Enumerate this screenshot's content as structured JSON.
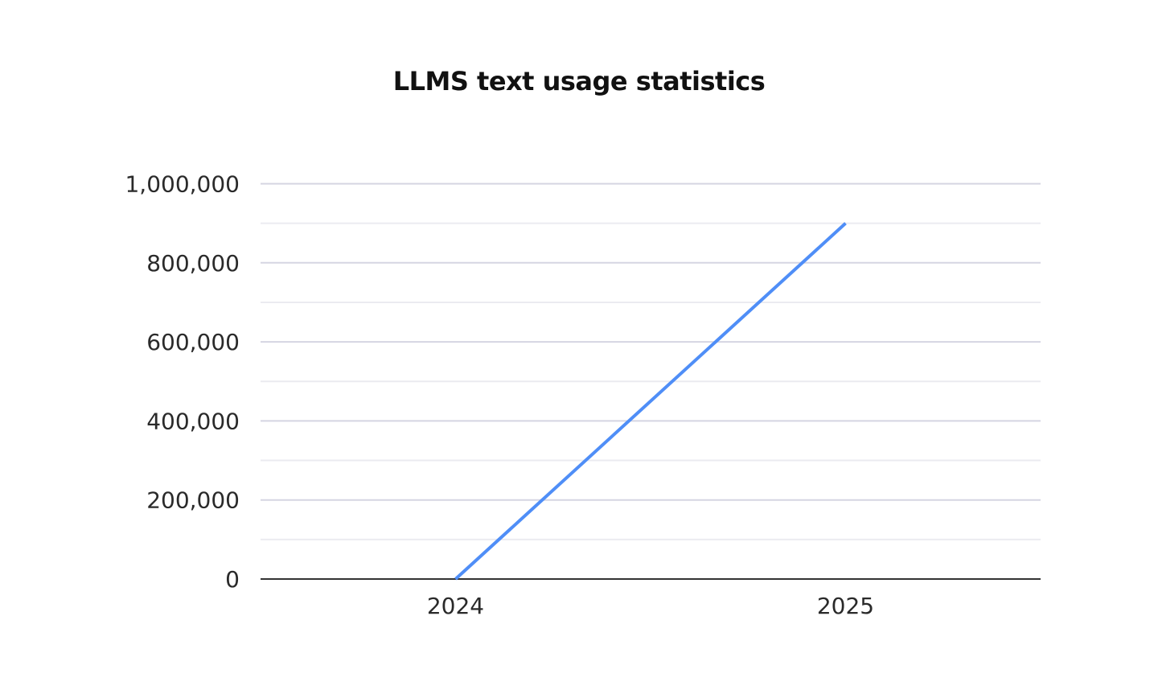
{
  "chart_data": {
    "type": "line",
    "title": "LLMS text usage statistics",
    "xlabel": "",
    "ylabel": "",
    "categories": [
      "2024",
      "2025"
    ],
    "series": [
      {
        "values": [
          0,
          900000
        ],
        "color": "#4f8ef7"
      }
    ],
    "ylim": [
      0,
      1000000
    ],
    "yticks": [
      0,
      200000,
      400000,
      600000,
      800000,
      1000000
    ],
    "ytick_labels": [
      "0",
      "200,000",
      "400,000",
      "600,000",
      "800,000",
      "1,000,000"
    ],
    "grid": true,
    "minor_grid": true,
    "legend": "none"
  }
}
